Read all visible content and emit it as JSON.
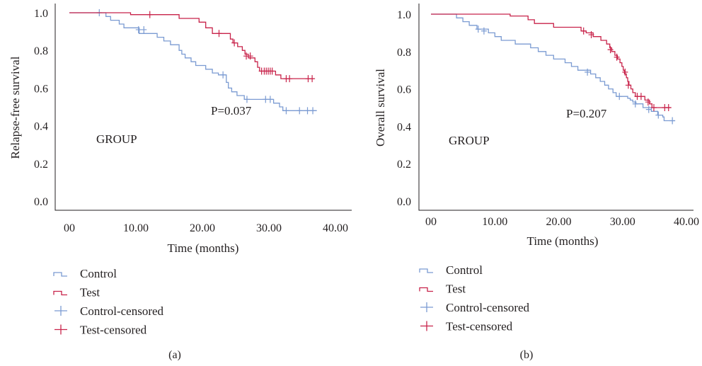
{
  "colors": {
    "control": "#7b9bd2",
    "test": "#c8234a",
    "axis": "#231f20"
  },
  "legend": {
    "items": [
      {
        "label": "Control",
        "key": "control",
        "symbol": "step"
      },
      {
        "label": "Test",
        "key": "test",
        "symbol": "step"
      },
      {
        "label": "Control-censored",
        "key": "control",
        "symbol": "cross"
      },
      {
        "label": "Test-censored",
        "key": "test",
        "symbol": "cross"
      }
    ]
  },
  "chart_data": [
    {
      "type": "line",
      "caption": "(a)",
      "xlabel": "Time (months)",
      "ylabel": "Relapse-free survival",
      "annotation_p": "P=0.037",
      "annotation_group": "GROUP",
      "xlim": [
        0,
        40
      ],
      "ylim": [
        0,
        1
      ],
      "x_ticks": [
        0,
        10,
        20,
        30,
        40
      ],
      "x_tick_labels": [
        "00",
        "10.00",
        "20.00",
        "30.00",
        "40.00"
      ],
      "y_ticks": [
        0,
        0.2,
        0.4,
        0.6,
        0.8,
        1.0
      ],
      "y_tick_labels": [
        "0.0",
        "0.2",
        "0.4",
        "0.6",
        "0.8",
        "1.0"
      ],
      "grid": false,
      "series": [
        {
          "key": "control",
          "steps": [
            [
              0,
              1.0
            ],
            [
              5.5,
              0.98
            ],
            [
              6.2,
              0.96
            ],
            [
              7.5,
              0.94
            ],
            [
              8.2,
              0.92
            ],
            [
              10.5,
              0.89
            ],
            [
              13.2,
              0.87
            ],
            [
              14.2,
              0.85
            ],
            [
              15.2,
              0.83
            ],
            [
              16.5,
              0.8
            ],
            [
              16.9,
              0.78
            ],
            [
              17.4,
              0.76
            ],
            [
              18.3,
              0.74
            ],
            [
              19.0,
              0.72
            ],
            [
              20.5,
              0.7
            ],
            [
              21.5,
              0.68
            ],
            [
              22.4,
              0.67
            ],
            [
              23.6,
              0.63
            ],
            [
              23.9,
              0.6
            ],
            [
              24.4,
              0.58
            ],
            [
              25.2,
              0.56
            ],
            [
              26.3,
              0.54
            ],
            [
              30.7,
              0.52
            ],
            [
              31.6,
              0.5
            ],
            [
              32.1,
              0.48
            ],
            [
              37.2,
              0.48
            ]
          ],
          "censored": [
            [
              4.5,
              1.0
            ],
            [
              10.4,
              0.91
            ],
            [
              11.2,
              0.91
            ],
            [
              23.1,
              0.67
            ],
            [
              26.7,
              0.54
            ],
            [
              29.5,
              0.54
            ],
            [
              30.2,
              0.54
            ],
            [
              32.6,
              0.48
            ],
            [
              34.6,
              0.48
            ],
            [
              35.8,
              0.48
            ],
            [
              36.6,
              0.48
            ]
          ]
        },
        {
          "key": "test",
          "steps": [
            [
              0,
              1.0
            ],
            [
              9.2,
              0.99
            ],
            [
              16.5,
              0.97
            ],
            [
              19.5,
              0.95
            ],
            [
              20.5,
              0.92
            ],
            [
              21.5,
              0.89
            ],
            [
              24.2,
              0.86
            ],
            [
              24.6,
              0.84
            ],
            [
              25.3,
              0.82
            ],
            [
              26.0,
              0.8
            ],
            [
              26.4,
              0.78
            ],
            [
              26.9,
              0.76
            ],
            [
              27.9,
              0.74
            ],
            [
              28.3,
              0.71
            ],
            [
              28.6,
              0.69
            ],
            [
              31.0,
              0.67
            ],
            [
              31.8,
              0.65
            ],
            [
              36.7,
              0.65
            ]
          ],
          "censored": [
            [
              12.1,
              0.99
            ],
            [
              22.5,
              0.89
            ],
            [
              24.8,
              0.84
            ],
            [
              26.6,
              0.77
            ],
            [
              27.2,
              0.77
            ],
            [
              28.9,
              0.69
            ],
            [
              29.3,
              0.69
            ],
            [
              29.6,
              0.69
            ],
            [
              29.9,
              0.69
            ],
            [
              30.2,
              0.69
            ],
            [
              30.5,
              0.69
            ],
            [
              32.6,
              0.65
            ],
            [
              33.1,
              0.65
            ],
            [
              35.9,
              0.65
            ],
            [
              36.5,
              0.65
            ]
          ]
        }
      ]
    },
    {
      "type": "line",
      "caption": "(b)",
      "xlabel": "Time (months)",
      "ylabel": "Overall survival",
      "annotation_p": "P=0.207",
      "annotation_group": "GROUP",
      "xlim": [
        0,
        40
      ],
      "ylim": [
        0,
        1
      ],
      "x_ticks": [
        0,
        10,
        20,
        30,
        40
      ],
      "x_tick_labels": [
        "00",
        "10.00",
        "20.00",
        "30.00",
        "40.00"
      ],
      "y_ticks": [
        0,
        0.2,
        0.4,
        0.6,
        0.8,
        1.0
      ],
      "y_tick_labels": [
        "0.0",
        "0.2",
        "0.4",
        "0.6",
        "0.8",
        "1.0"
      ],
      "grid": false,
      "series": [
        {
          "key": "control",
          "steps": [
            [
              0,
              1.0
            ],
            [
              4.0,
              0.98
            ],
            [
              5.0,
              0.96
            ],
            [
              6.0,
              0.94
            ],
            [
              7.2,
              0.92
            ],
            [
              9.0,
              0.9
            ],
            [
              10.0,
              0.88
            ],
            [
              11.0,
              0.86
            ],
            [
              13.2,
              0.84
            ],
            [
              15.6,
              0.82
            ],
            [
              16.8,
              0.8
            ],
            [
              18.0,
              0.78
            ],
            [
              19.2,
              0.76
            ],
            [
              21.0,
              0.74
            ],
            [
              22.0,
              0.72
            ],
            [
              23.0,
              0.7
            ],
            [
              25.0,
              0.68
            ],
            [
              25.8,
              0.66
            ],
            [
              26.5,
              0.64
            ],
            [
              27.2,
              0.62
            ],
            [
              27.8,
              0.6
            ],
            [
              28.5,
              0.58
            ],
            [
              29.0,
              0.56
            ],
            [
              30.8,
              0.55
            ],
            [
              31.2,
              0.54
            ],
            [
              31.6,
              0.53
            ],
            [
              32.1,
              0.52
            ],
            [
              33.2,
              0.5
            ],
            [
              34.5,
              0.48
            ],
            [
              35.5,
              0.46
            ],
            [
              36.3,
              0.45
            ],
            [
              36.5,
              0.43
            ],
            [
              38.2,
              0.43
            ]
          ],
          "censored": [
            [
              7.4,
              0.92
            ],
            [
              8.3,
              0.91
            ],
            [
              24.5,
              0.69
            ],
            [
              29.5,
              0.56
            ],
            [
              32.0,
              0.52
            ],
            [
              34.1,
              0.49
            ],
            [
              35.6,
              0.46
            ],
            [
              37.8,
              0.43
            ]
          ]
        },
        {
          "key": "test",
          "steps": [
            [
              0,
              1.0
            ],
            [
              12.4,
              0.99
            ],
            [
              15.2,
              0.97
            ],
            [
              16.2,
              0.95
            ],
            [
              19.2,
              0.93
            ],
            [
              23.5,
              0.91
            ],
            [
              24.3,
              0.9
            ],
            [
              25.4,
              0.88
            ],
            [
              26.6,
              0.86
            ],
            [
              27.5,
              0.84
            ],
            [
              28.0,
              0.82
            ],
            [
              28.3,
              0.8
            ],
            [
              28.8,
              0.78
            ],
            [
              29.2,
              0.76
            ],
            [
              29.6,
              0.74
            ],
            [
              29.9,
              0.72
            ],
            [
              30.1,
              0.7
            ],
            [
              30.3,
              0.68
            ],
            [
              30.6,
              0.66
            ],
            [
              30.8,
              0.64
            ],
            [
              31.0,
              0.62
            ],
            [
              31.3,
              0.6
            ],
            [
              31.6,
              0.58
            ],
            [
              32.0,
              0.56
            ],
            [
              33.5,
              0.54
            ],
            [
              34.2,
              0.52
            ],
            [
              34.6,
              0.5
            ],
            [
              37.6,
              0.5
            ]
          ],
          "censored": [
            [
              23.9,
              0.91
            ],
            [
              25.1,
              0.89
            ],
            [
              28.1,
              0.81
            ],
            [
              29.1,
              0.77
            ],
            [
              30.4,
              0.69
            ],
            [
              30.9,
              0.62
            ],
            [
              32.3,
              0.56
            ],
            [
              32.9,
              0.56
            ],
            [
              34.0,
              0.53
            ],
            [
              34.9,
              0.5
            ],
            [
              36.6,
              0.5
            ],
            [
              37.2,
              0.5
            ]
          ]
        }
      ]
    }
  ]
}
